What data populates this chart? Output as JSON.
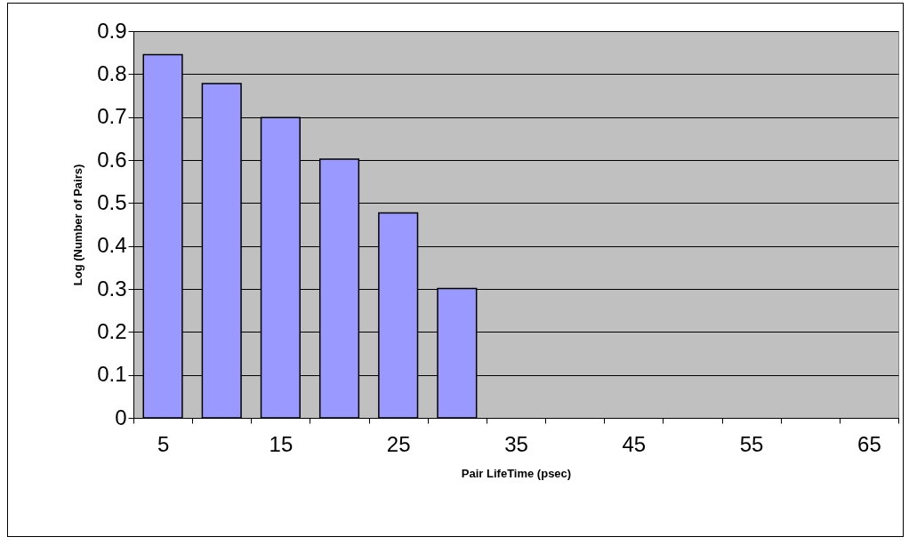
{
  "chart_data": {
    "type": "bar",
    "xlabel": "Pair LifeTime (psec)",
    "ylabel": "Log (Number of Pairs)",
    "categories": [
      "5",
      null,
      "15",
      null,
      "25",
      null,
      "35",
      null,
      "45",
      null,
      "55",
      null,
      "65"
    ],
    "values": [
      0.845,
      0.778,
      0.699,
      0.602,
      0.477,
      0.301,
      null,
      null,
      null,
      null,
      null,
      null,
      null
    ],
    "color": "#9999ff",
    "ylim": [
      0,
      0.9
    ],
    "yticks": [
      0,
      0.1,
      0.2,
      0.3,
      0.4,
      0.5,
      0.6,
      0.7,
      0.8,
      0.9
    ],
    "grid": "y"
  }
}
